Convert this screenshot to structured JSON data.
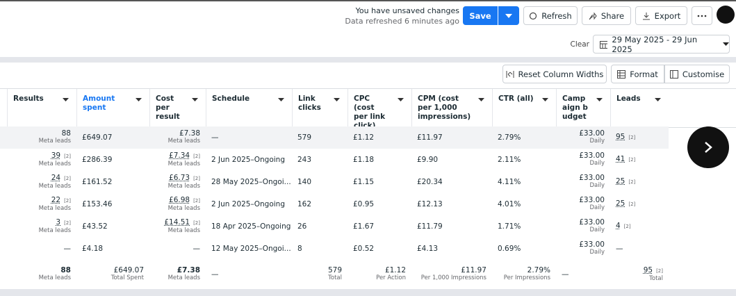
{
  "toolbar": {
    "unsaved": "You have unsaved changes",
    "refreshed": "Data refreshed 6 minutes ago",
    "buttons": {
      "save": "Save",
      "refresh": "Refresh",
      "share": "Share",
      "export": "Export"
    }
  },
  "date_filter": {
    "clear": "Clear",
    "range": "29 May 2025 - 29 Jun 2025"
  },
  "table_actions": {
    "reset": "Reset Column Widths",
    "format": "Format",
    "customise": "Customise"
  },
  "table": {
    "columns": [
      "Results",
      "Amount spent",
      "Cost per result",
      "Schedule",
      "Link clicks",
      "CPC (cost per link click)",
      "CPM (cost per 1,000 impressions)",
      "CTR (all)",
      "Campaign budget",
      "Leads"
    ],
    "rows": [
      {
        "cells": [
          {
            "text": "88",
            "sub": "Meta leads"
          },
          {
            "text": "£649.07"
          },
          {
            "text": "£7.38",
            "sub": "Meta leads"
          },
          {
            "text": "—"
          },
          {
            "text": "579"
          },
          {
            "text": "£1.12"
          },
          {
            "text": "£11.97"
          },
          {
            "text": "2.79%"
          },
          {
            "text": "£33.00",
            "sub": "Daily"
          },
          {
            "text": "95",
            "note": "[2]"
          }
        ]
      },
      {
        "cells": [
          {
            "text": "39",
            "note": "[2]",
            "sub": "Meta leads"
          },
          {
            "text": "£286.39"
          },
          {
            "text": "£7.34",
            "note": "[2]",
            "sub": "Meta leads"
          },
          {
            "text": "2 Jun 2025–Ongoing"
          },
          {
            "text": "243"
          },
          {
            "text": "£1.18"
          },
          {
            "text": "£9.90"
          },
          {
            "text": "2.11%"
          },
          {
            "text": "£33.00",
            "sub": "Daily"
          },
          {
            "text": "41",
            "note": "[2]"
          }
        ]
      },
      {
        "cells": [
          {
            "text": "24",
            "note": "[2]",
            "sub": "Meta leads"
          },
          {
            "text": "£161.52"
          },
          {
            "text": "£6.73",
            "note": "[2]",
            "sub": "Meta leads"
          },
          {
            "text": "28 May 2025–Ongoi..."
          },
          {
            "text": "140"
          },
          {
            "text": "£1.15"
          },
          {
            "text": "£20.34"
          },
          {
            "text": "4.11%"
          },
          {
            "text": "£33.00",
            "sub": "Daily"
          },
          {
            "text": "25",
            "note": "[2]"
          }
        ]
      },
      {
        "cells": [
          {
            "text": "22",
            "note": "[2]",
            "sub": "Meta leads"
          },
          {
            "text": "£153.46"
          },
          {
            "text": "£6.98",
            "note": "[2]",
            "sub": "Meta leads"
          },
          {
            "text": "2 Jun 2025–Ongoing"
          },
          {
            "text": "162"
          },
          {
            "text": "£0.95"
          },
          {
            "text": "£12.13"
          },
          {
            "text": "4.01%"
          },
          {
            "text": "£33.00",
            "sub": "Daily"
          },
          {
            "text": "25",
            "note": "[2]"
          }
        ]
      },
      {
        "cells": [
          {
            "text": "3",
            "note": "[2]",
            "sub": "Meta leads"
          },
          {
            "text": "£43.52"
          },
          {
            "text": "£14.51",
            "note": "[2]",
            "sub": "Meta leads"
          },
          {
            "text": "18 Apr 2025–Ongoing"
          },
          {
            "text": "26"
          },
          {
            "text": "£1.67"
          },
          {
            "text": "£11.79"
          },
          {
            "text": "1.71%"
          },
          {
            "text": "£33.00",
            "sub": "Daily"
          },
          {
            "text": "4",
            "note": "[2]"
          }
        ]
      },
      {
        "cells": [
          {
            "text": "—"
          },
          {
            "text": "£4.18"
          },
          {
            "text": "—"
          },
          {
            "text": "12 May 2025–Ongoi..."
          },
          {
            "text": "8"
          },
          {
            "text": "£0.52"
          },
          {
            "text": "£4.13"
          },
          {
            "text": "0.69%"
          },
          {
            "text": "£33.00",
            "sub": "Daily"
          },
          {
            "text": "—"
          }
        ]
      }
    ],
    "totals": {
      "cells": [
        {
          "text": "88",
          "sub": "Meta leads"
        },
        {
          "text": "£649.07",
          "sub": "Total Spent"
        },
        {
          "text": "£7.38",
          "sub": "Meta leads"
        },
        {
          "text": "—"
        },
        {
          "text": "579",
          "sub": "Total"
        },
        {
          "text": "£1.12",
          "sub": "Per Action"
        },
        {
          "text": "£11.97",
          "sub": "Per 1,000 Impressions"
        },
        {
          "text": "2.79%",
          "sub": "Per Impressions"
        },
        {
          "text": "—"
        },
        {
          "text": "95",
          "note": "[2]",
          "sub": "Total"
        }
      ]
    }
  }
}
